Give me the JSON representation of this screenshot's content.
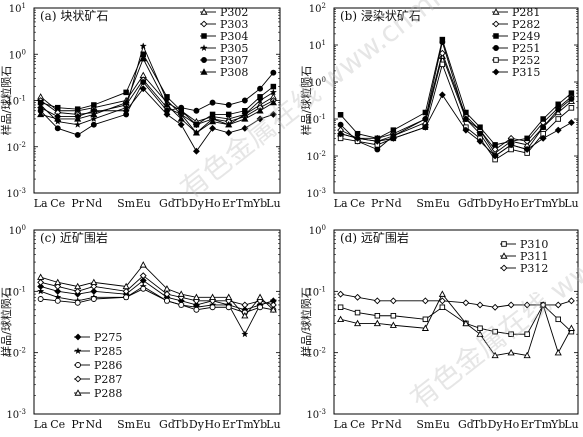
{
  "chart_data": [
    {
      "type": "line",
      "title": "(a) 块状矿石",
      "ylabel": "样品/球粒陨石",
      "y_scale": "log",
      "ylim": [
        0.001,
        10
      ],
      "yticks": [
        "10^-3",
        "10^-2",
        "10^-1",
        "10^0",
        "10^1"
      ],
      "categories": [
        "La",
        "Ce",
        "Pr",
        "Nd",
        "Sm",
        "Eu",
        "Gd",
        "Tb",
        "Dy",
        "Ho",
        "Er",
        "Tm",
        "Yb",
        "Lu"
      ],
      "legend_position": "top-right",
      "series": [
        {
          "name": "P302",
          "marker": "open-triangle",
          "values": [
            0.12,
            0.06,
            0.06,
            0.07,
            0.1,
            0.35,
            0.09,
            0.06,
            0.035,
            0.045,
            0.04,
            0.05,
            0.08,
            0.12
          ]
        },
        {
          "name": "P303",
          "marker": "open-diamond",
          "values": [
            0.1,
            0.055,
            0.05,
            0.055,
            0.08,
            0.28,
            0.07,
            0.05,
            0.03,
            0.04,
            0.035,
            0.045,
            0.07,
            0.1
          ]
        },
        {
          "name": "P304",
          "marker": "filled-square",
          "values": [
            0.09,
            0.07,
            0.065,
            0.08,
            0.15,
            1.0,
            0.12,
            0.06,
            0.03,
            0.05,
            0.05,
            0.06,
            0.12,
            0.2
          ]
        },
        {
          "name": "P305",
          "marker": "filled-star",
          "values": [
            0.08,
            0.035,
            0.03,
            0.04,
            0.07,
            1.5,
            0.1,
            0.05,
            0.02,
            0.04,
            0.03,
            0.05,
            0.1,
            0.15
          ]
        },
        {
          "name": "P307",
          "marker": "filled-circle",
          "values": [
            0.06,
            0.025,
            0.018,
            0.03,
            0.05,
            0.25,
            0.06,
            0.07,
            0.06,
            0.09,
            0.08,
            0.1,
            0.18,
            0.4
          ]
        },
        {
          "name": "P308",
          "marker": "filled-triangle",
          "values": [
            0.05,
            0.04,
            0.04,
            0.05,
            0.09,
            0.8,
            0.08,
            0.04,
            0.02,
            0.035,
            0.03,
            0.04,
            0.06,
            0.09
          ]
        },
        {
          "name": "",
          "marker": "filled-diamond",
          "values": [
            0.07,
            0.045,
            0.045,
            0.06,
            0.06,
            0.18,
            0.05,
            0.03,
            0.008,
            0.025,
            0.02,
            0.025,
            0.04,
            0.05
          ]
        }
      ]
    },
    {
      "type": "line",
      "title": "(b) 浸染状矿石",
      "ylabel": "样品/球粒陨石",
      "y_scale": "log",
      "ylim": [
        0.001,
        100
      ],
      "yticks": [
        "10^-3",
        "10^-2",
        "10^-1",
        "10^0",
        "10^1",
        "10^2"
      ],
      "categories": [
        "La",
        "Ce",
        "Pr",
        "Nd",
        "Sm",
        "Eu",
        "Gd",
        "Tb",
        "Dy",
        "Ho",
        "Er",
        "Tm",
        "Yb",
        "Lu"
      ],
      "legend_position": "top-right",
      "series": [
        {
          "name": "P281",
          "marker": "open-triangle",
          "values": [
            0.04,
            0.03,
            0.025,
            0.035,
            0.08,
            5.0,
            0.1,
            0.05,
            0.012,
            0.025,
            0.02,
            0.06,
            0.15,
            0.3
          ]
        },
        {
          "name": "P282",
          "marker": "open-diamond",
          "values": [
            0.05,
            0.03,
            0.03,
            0.04,
            0.1,
            6.0,
            0.12,
            0.05,
            0.015,
            0.03,
            0.025,
            0.08,
            0.2,
            0.4
          ]
        },
        {
          "name": "P249",
          "marker": "filled-square",
          "values": [
            0.13,
            0.04,
            0.03,
            0.05,
            0.15,
            14.0,
            0.15,
            0.06,
            0.02,
            0.025,
            0.03,
            0.1,
            0.25,
            0.5
          ]
        },
        {
          "name": "P251",
          "marker": "filled-circle",
          "values": [
            0.07,
            0.025,
            0.015,
            0.035,
            0.1,
            12.0,
            0.1,
            0.04,
            0.01,
            0.02,
            0.015,
            0.06,
            0.18,
            0.35
          ]
        },
        {
          "name": "P252",
          "marker": "open-square",
          "values": [
            0.03,
            0.025,
            0.02,
            0.03,
            0.06,
            3.0,
            0.06,
            0.03,
            0.008,
            0.015,
            0.012,
            0.04,
            0.1,
            0.2
          ]
        },
        {
          "name": "P315",
          "marker": "filled-diamond",
          "values": [
            0.04,
            0.03,
            0.025,
            0.03,
            0.06,
            0.45,
            0.05,
            0.025,
            0.01,
            0.02,
            0.015,
            0.03,
            0.05,
            0.08
          ]
        }
      ]
    },
    {
      "type": "line",
      "title": "(c) 近矿围岩",
      "ylabel": "样品/球粒陨石",
      "y_scale": "log",
      "ylim": [
        0.001,
        1
      ],
      "yticks": [
        "10^-3",
        "10^-2",
        "10^-1",
        "10^0"
      ],
      "categories": [
        "La",
        "Ce",
        "Pr",
        "Nd",
        "Sm",
        "Eu",
        "Gd",
        "Tb",
        "Dy",
        "Ho",
        "Er",
        "Tm",
        "Yb",
        "Lu"
      ],
      "legend_position": "bottom-left",
      "series": [
        {
          "name": "P275",
          "marker": "filled-diamond",
          "values": [
            0.12,
            0.1,
            0.09,
            0.1,
            0.09,
            0.15,
            0.08,
            0.07,
            0.06,
            0.07,
            0.06,
            0.05,
            0.06,
            0.07
          ]
        },
        {
          "name": "P285",
          "marker": "filled-star",
          "values": [
            0.1,
            0.08,
            0.07,
            0.08,
            0.08,
            0.12,
            0.07,
            0.06,
            0.055,
            0.06,
            0.06,
            0.02,
            0.06,
            0.07
          ]
        },
        {
          "name": "P286",
          "marker": "open-circle",
          "values": [
            0.075,
            0.07,
            0.065,
            0.075,
            0.08,
            0.11,
            0.07,
            0.06,
            0.05,
            0.055,
            0.055,
            0.045,
            0.055,
            0.05
          ]
        },
        {
          "name": "P287",
          "marker": "open-diamond",
          "values": [
            0.14,
            0.12,
            0.1,
            0.12,
            0.1,
            0.18,
            0.09,
            0.08,
            0.07,
            0.07,
            0.07,
            0.06,
            0.07,
            0.06
          ]
        },
        {
          "name": "P288",
          "marker": "open-triangle",
          "values": [
            0.17,
            0.14,
            0.12,
            0.14,
            0.12,
            0.27,
            0.11,
            0.09,
            0.08,
            0.08,
            0.08,
            0.04,
            0.08,
            0.05
          ]
        }
      ]
    },
    {
      "type": "line",
      "title": "(d) 远矿围岩",
      "ylabel": "样品/球粒陨石",
      "y_scale": "log",
      "ylim": [
        0.001,
        1
      ],
      "yticks": [
        "10^-3",
        "10^-2",
        "10^-1",
        "10^0"
      ],
      "categories": [
        "La",
        "Ce",
        "Pr",
        "Nd",
        "Sm",
        "Eu",
        "Gd",
        "Tb",
        "Dy",
        "Ho",
        "Er",
        "Tm",
        "Yb",
        "Lu"
      ],
      "legend_position": "top-right",
      "series": [
        {
          "name": "P310",
          "marker": "open-square",
          "values": [
            0.055,
            0.045,
            0.04,
            0.04,
            0.035,
            0.055,
            0.03,
            0.025,
            0.022,
            0.02,
            0.02,
            0.06,
            0.035,
            0.022
          ]
        },
        {
          "name": "P311",
          "marker": "open-triangle",
          "values": [
            0.035,
            0.03,
            0.03,
            0.028,
            0.025,
            0.09,
            0.03,
            0.02,
            0.009,
            0.01,
            0.009,
            0.06,
            0.01,
            0.025
          ]
        },
        {
          "name": "P312",
          "marker": "open-diamond",
          "values": [
            0.09,
            0.08,
            0.07,
            0.07,
            0.07,
            0.07,
            0.065,
            0.06,
            0.055,
            0.06,
            0.06,
            0.06,
            0.06,
            0.07
          ]
        }
      ]
    }
  ],
  "watermark": "有色金属在线 www.cnmn.com.cn"
}
